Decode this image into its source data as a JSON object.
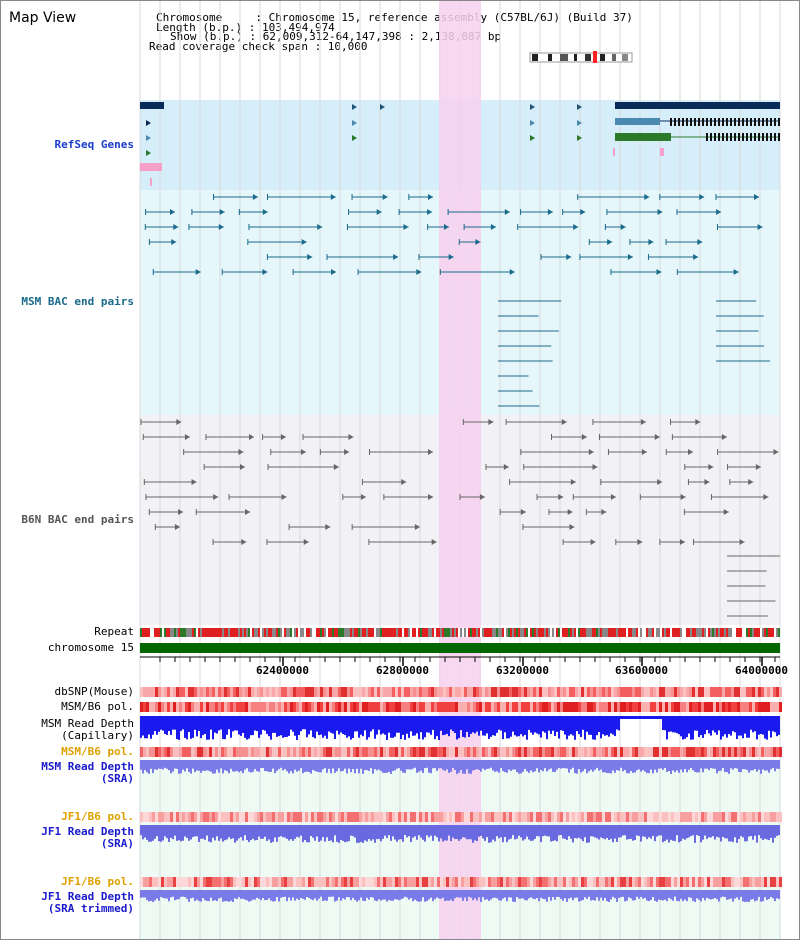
{
  "title": "Map View",
  "header": {
    "line1": "Chromosome     : Chromosome 15, reference assembly (C57BL/6J) (Build 37)",
    "line2": "Length (b.p.) : 103,494,974",
    "line3": "Show (b.p.) : 62,009,312-64,147,398 : 2,138,087 bp",
    "line4": "Read coverage check span : 10,000"
  },
  "tracks": {
    "refseq": "RefSeq Genes",
    "msm_bac": "MSM BAC end pairs",
    "b6n_bac": "B6N BAC end pairs",
    "repeat": "Repeat",
    "chromosome": "chromosome 15",
    "dbsnp": "dbSNP(Mouse)",
    "msm_b6_pol_1": "MSM/B6 pol.",
    "msm_depth_cap": "MSM Read Depth\n(Capillary)",
    "msm_b6_pol_2": "MSM/B6 pol.",
    "msm_depth_sra": "MSM Read Depth\n(SRA)",
    "jf1_b6_pol_1": "JF1/B6 pol.",
    "jf1_depth_sra": "JF1 Read Depth\n(SRA)",
    "jf1_b6_pol_2": "JF1/B6 pol.",
    "jf1_depth_trim": "JF1 Read Depth\n(SRA trimmed)"
  },
  "ruler": {
    "ticks": [
      "62400000",
      "62800000",
      "63200000",
      "63600000",
      "64000000"
    ]
  },
  "colors": {
    "refseq_label": "#1a3ccc",
    "msm_label": "#1a6a8a",
    "b6n_label": "#555555",
    "pol_label": "#e0a000",
    "depth_label": "#1a1acc",
    "highlight": "#f7d0ef",
    "refseq_bg": "#d6eefa",
    "msm_bg": "#e6f7fb",
    "b6n_bg": "#f2f2f6",
    "chrom_bar": "#006600",
    "gene_dark": "#0a2a5a",
    "gene_green": "#2a7a2a"
  }
}
